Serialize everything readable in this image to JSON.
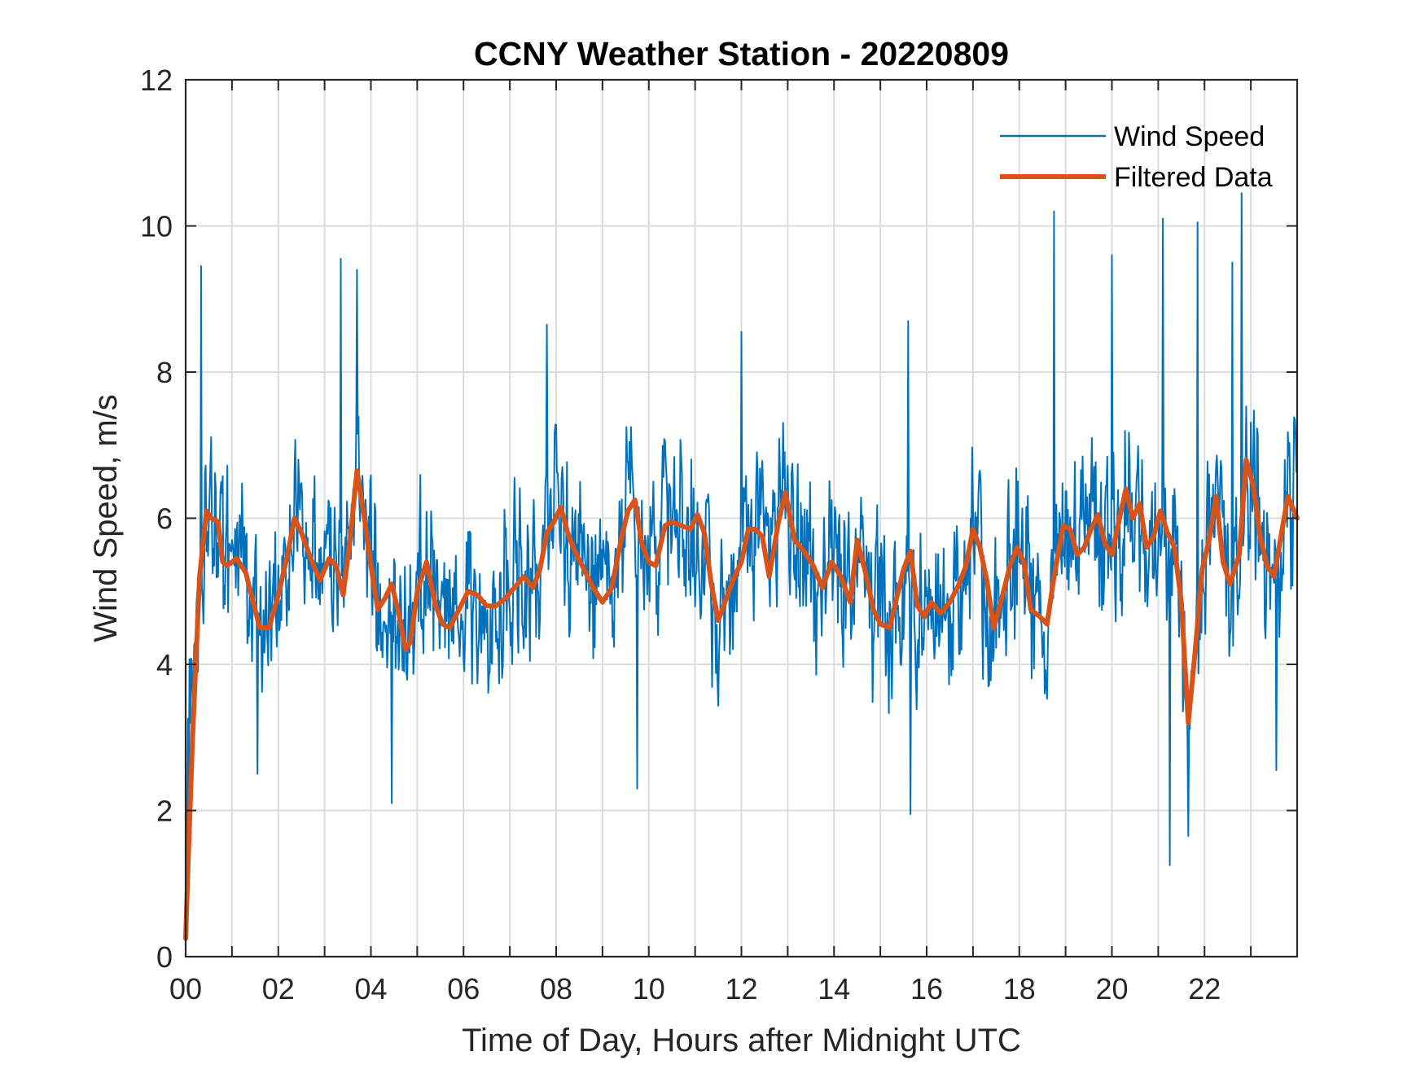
{
  "chart_data": {
    "type": "line",
    "title": "CCNY Weather Station - 20220809",
    "xlabel": "Time of Day, Hours after Midnight UTC",
    "ylabel": "Wind Speed, m/s",
    "xlim": [
      0,
      24
    ],
    "ylim": [
      0,
      12
    ],
    "x_ticks": [
      0,
      2,
      4,
      6,
      8,
      10,
      12,
      14,
      16,
      18,
      20,
      22
    ],
    "x_tick_labels": [
      "00",
      "02",
      "04",
      "06",
      "08",
      "10",
      "12",
      "14",
      "16",
      "18",
      "20",
      "22"
    ],
    "y_ticks": [
      0,
      2,
      4,
      6,
      8,
      10,
      12
    ],
    "y_tick_labels": [
      "0",
      "2",
      "4",
      "6",
      "8",
      "10",
      "12"
    ],
    "x_grid_step_hours": 1,
    "grid": true,
    "legend_position": "top-right",
    "series": [
      {
        "name": "Wind Speed",
        "color": "#0072BD",
        "style": "thin",
        "sample_interval_hours": 0.0166667,
        "noise_amplitude": 1.35,
        "noise_seed": 20220809,
        "peaks": [
          [
            0.33,
            9.45
          ],
          [
            3.35,
            9.55
          ],
          [
            3.7,
            9.4
          ],
          [
            7.8,
            8.65
          ],
          [
            12.0,
            8.55
          ],
          [
            15.6,
            8.7
          ],
          [
            18.75,
            10.2
          ],
          [
            20.0,
            9.6
          ],
          [
            21.1,
            10.1
          ],
          [
            21.85,
            10.05
          ],
          [
            22.8,
            10.45
          ],
          [
            22.6,
            9.5
          ]
        ],
        "troughs": [
          [
            4.45,
            2.1
          ],
          [
            15.65,
            1.95
          ],
          [
            21.25,
            1.25
          ],
          [
            21.65,
            1.65
          ],
          [
            9.75,
            2.3
          ],
          [
            1.55,
            2.5
          ],
          [
            23.55,
            2.55
          ]
        ]
      },
      {
        "name": "Filtered Data",
        "color": "#D95319",
        "style": "thick",
        "x": [
          0,
          0.05,
          0.15,
          0.3,
          0.45,
          0.55,
          0.7,
          0.8,
          0.9,
          1.1,
          1.3,
          1.5,
          1.6,
          1.8,
          2.0,
          2.2,
          2.35,
          2.5,
          2.7,
          2.9,
          3.1,
          3.25,
          3.4,
          3.55,
          3.7,
          3.85,
          4.0,
          4.15,
          4.3,
          4.45,
          4.6,
          4.75,
          4.85,
          5.0,
          5.2,
          5.4,
          5.55,
          5.7,
          5.9,
          6.1,
          6.3,
          6.5,
          6.7,
          6.9,
          7.1,
          7.3,
          7.5,
          7.65,
          7.8,
          7.95,
          8.1,
          8.25,
          8.4,
          8.6,
          8.8,
          9.0,
          9.2,
          9.4,
          9.55,
          9.7,
          9.85,
          10.0,
          10.15,
          10.35,
          10.5,
          10.7,
          10.9,
          11.05,
          11.2,
          11.35,
          11.5,
          11.7,
          11.85,
          12.0,
          12.15,
          12.3,
          12.45,
          12.6,
          12.8,
          12.95,
          13.15,
          13.35,
          13.55,
          13.75,
          13.95,
          14.15,
          14.35,
          14.5,
          14.7,
          14.85,
          15.0,
          15.2,
          15.35,
          15.5,
          15.65,
          15.8,
          15.95,
          16.1,
          16.3,
          16.5,
          16.7,
          16.85,
          17.0,
          17.15,
          17.3,
          17.45,
          17.6,
          17.8,
          17.95,
          18.1,
          18.25,
          18.45,
          18.6,
          18.75,
          18.95,
          19.1,
          19.25,
          19.4,
          19.55,
          19.7,
          19.85,
          20.0,
          20.15,
          20.3,
          20.45,
          20.6,
          20.75,
          20.9,
          21.05,
          21.2,
          21.35,
          21.5,
          21.65,
          21.8,
          21.95,
          22.1,
          22.25,
          22.4,
          22.55,
          22.75,
          22.9,
          23.05,
          23.2,
          23.35,
          23.5,
          23.65,
          23.8,
          24.0
        ],
        "y": [
          0.25,
          1.2,
          3.0,
          5.2,
          6.1,
          6.0,
          5.95,
          5.4,
          5.35,
          5.45,
          5.25,
          4.75,
          4.5,
          4.5,
          4.95,
          5.5,
          6.0,
          5.8,
          5.45,
          5.15,
          5.45,
          5.35,
          4.95,
          5.7,
          6.65,
          6.05,
          5.35,
          4.75,
          4.9,
          5.1,
          4.7,
          4.2,
          4.3,
          5.0,
          5.4,
          4.8,
          4.55,
          4.5,
          4.75,
          5.0,
          4.95,
          4.8,
          4.8,
          4.9,
          5.05,
          5.2,
          5.05,
          5.3,
          5.8,
          5.95,
          6.15,
          5.8,
          5.55,
          5.3,
          5.05,
          4.85,
          5.05,
          5.7,
          6.1,
          6.25,
          5.65,
          5.4,
          5.35,
          5.9,
          5.95,
          5.9,
          5.85,
          6.05,
          5.8,
          5.1,
          4.6,
          4.95,
          5.2,
          5.4,
          5.85,
          5.85,
          5.75,
          5.2,
          5.95,
          6.35,
          5.7,
          5.55,
          5.35,
          5.05,
          5.4,
          5.2,
          4.85,
          5.7,
          5.2,
          4.75,
          4.55,
          4.5,
          4.9,
          5.3,
          5.55,
          4.8,
          4.65,
          4.85,
          4.7,
          4.85,
          5.1,
          5.35,
          5.85,
          5.6,
          5.15,
          4.5,
          4.85,
          5.35,
          5.6,
          5.4,
          4.75,
          4.65,
          4.55,
          5.2,
          5.9,
          5.85,
          5.5,
          5.6,
          5.85,
          6.05,
          5.65,
          5.5,
          5.95,
          6.4,
          6.0,
          6.2,
          5.6,
          5.75,
          6.1,
          5.8,
          5.6,
          4.85,
          3.2,
          4.2,
          5.3,
          5.7,
          6.3,
          5.4,
          5.1,
          5.5,
          6.8,
          6.45,
          5.75,
          5.35,
          5.2,
          5.75,
          6.3,
          6.0
        ]
      }
    ]
  }
}
